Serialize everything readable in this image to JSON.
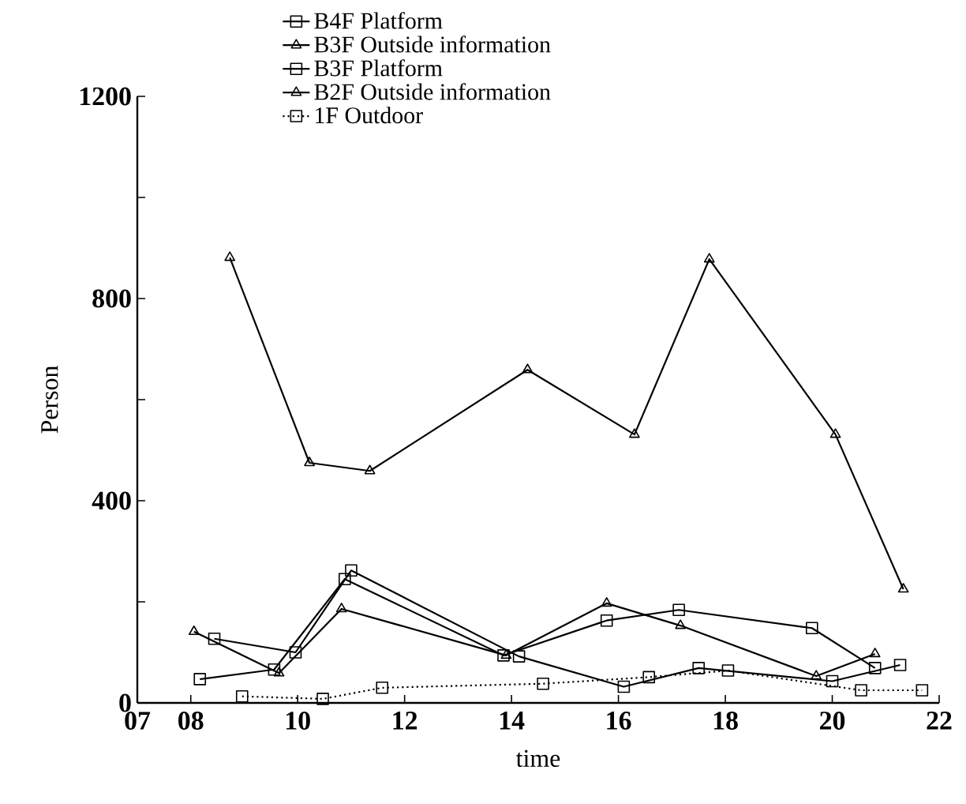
{
  "chart_data": {
    "type": "line",
    "xlabel": "time",
    "ylabel": "Person",
    "xlim": [
      7,
      22
    ],
    "xticks": [
      {
        "value": 7,
        "label": "07"
      },
      {
        "value": 8,
        "label": "08"
      },
      10,
      12,
      14,
      16,
      18,
      20,
      22
    ],
    "ylim": [
      0,
      1200
    ],
    "yticks": [
      0,
      {
        "value": 200,
        "label": null
      },
      400,
      {
        "value": 600,
        "label": null
      },
      800,
      {
        "value": 1000,
        "label": null
      },
      1200
    ],
    "legend": "top",
    "grid": false,
    "series": [
      {
        "name": "B4F Platform",
        "color": "#000000",
        "marker": "square",
        "line_style": "solid",
        "x": [
          8.17,
          9.56,
          10.88,
          13.85,
          15.78,
          17.13,
          19.62,
          20.8
        ],
        "values": [
          47,
          66,
          245,
          94,
          163,
          184,
          148,
          69
        ]
      },
      {
        "name": "B3F Outside information",
        "color": "#000000",
        "marker": "triangle",
        "line_style": "solid",
        "x": [
          8.06,
          9.65,
          10.82,
          13.9,
          15.78,
          17.16,
          19.7,
          20.8
        ],
        "values": [
          141,
          59,
          186,
          94,
          197,
          153,
          53,
          97
        ]
      },
      {
        "name": "B3F Platform",
        "color": "#000000",
        "marker": "square",
        "line_style": "solid",
        "x": [
          8.44,
          9.96,
          11.0,
          14.14,
          16.1,
          17.5,
          20.0,
          21.27
        ],
        "values": [
          127,
          100,
          262,
          92,
          32,
          69,
          43,
          75
        ]
      },
      {
        "name": "B2F Outside information",
        "color": "#000000",
        "marker": "triangle",
        "line_style": "solid",
        "x": [
          8.73,
          10.22,
          11.35,
          14.3,
          16.3,
          17.7,
          20.06,
          21.33
        ],
        "values": [
          881,
          475,
          459,
          659,
          531,
          878,
          531,
          225
        ]
      },
      {
        "name": "1F Outdoor",
        "color": "#000000",
        "marker": "square",
        "line_style": "dotted",
        "x": [
          8.96,
          10.47,
          11.58,
          14.59,
          16.57,
          18.05,
          20.54,
          21.68
        ],
        "values": [
          13,
          8,
          30,
          38,
          51,
          64,
          25,
          25
        ]
      }
    ]
  }
}
